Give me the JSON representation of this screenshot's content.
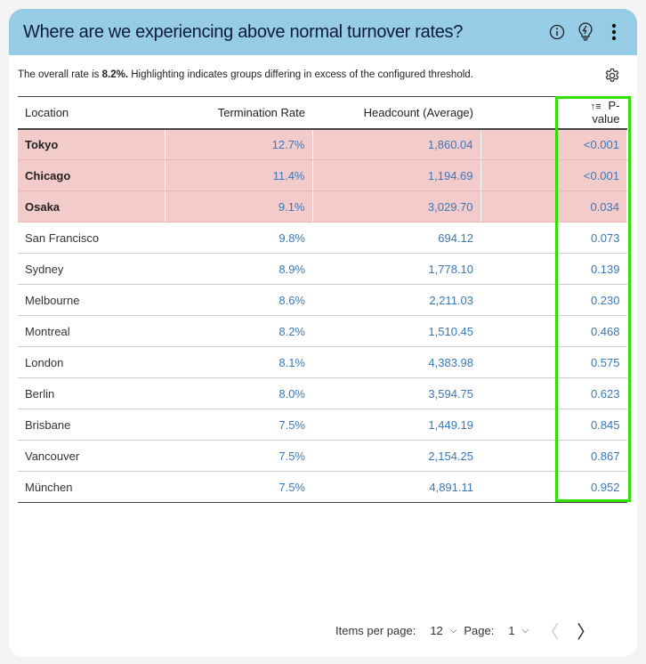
{
  "header": {
    "title": "Where are we experiencing above normal turnover rates?"
  },
  "summary": {
    "prefix": "The overall rate is ",
    "rate": "8.2%.",
    "suffix": " Highlighting indicates groups differing in excess of the configured threshold."
  },
  "table": {
    "columns": [
      "Location",
      "Termination Rate",
      "Headcount (Average)",
      "",
      "P-value"
    ],
    "rows": [
      {
        "location": "Tokyo",
        "rate": "12.7%",
        "headcount": "1,860.04",
        "p": "<0.001",
        "highlight": true
      },
      {
        "location": "Chicago",
        "rate": "11.4%",
        "headcount": "1,194.69",
        "p": "<0.001",
        "highlight": true
      },
      {
        "location": "Osaka",
        "rate": "9.1%",
        "headcount": "3,029.70",
        "p": "0.034",
        "highlight": true
      },
      {
        "location": "San Francisco",
        "rate": "9.8%",
        "headcount": "694.12",
        "p": "0.073"
      },
      {
        "location": "Sydney",
        "rate": "8.9%",
        "headcount": "1,778.10",
        "p": "0.139"
      },
      {
        "location": "Melbourne",
        "rate": "8.6%",
        "headcount": "2,211.03",
        "p": "0.230"
      },
      {
        "location": "Montreal",
        "rate": "8.2%",
        "headcount": "1,510.45",
        "p": "0.468"
      },
      {
        "location": "London",
        "rate": "8.1%",
        "headcount": "4,383.98",
        "p": "0.575"
      },
      {
        "location": "Berlin",
        "rate": "8.0%",
        "headcount": "3,594.75",
        "p": "0.623"
      },
      {
        "location": "Brisbane",
        "rate": "7.5%",
        "headcount": "1,449.19",
        "p": "0.845"
      },
      {
        "location": "Vancouver",
        "rate": "7.5%",
        "headcount": "2,154.25",
        "p": "0.867"
      },
      {
        "location": "München",
        "rate": "7.5%",
        "headcount": "4,891.11",
        "p": "0.952"
      }
    ]
  },
  "pager": {
    "items_label": "Items per page:",
    "items_value": "12",
    "page_label": "Page:",
    "page_value": "1"
  }
}
